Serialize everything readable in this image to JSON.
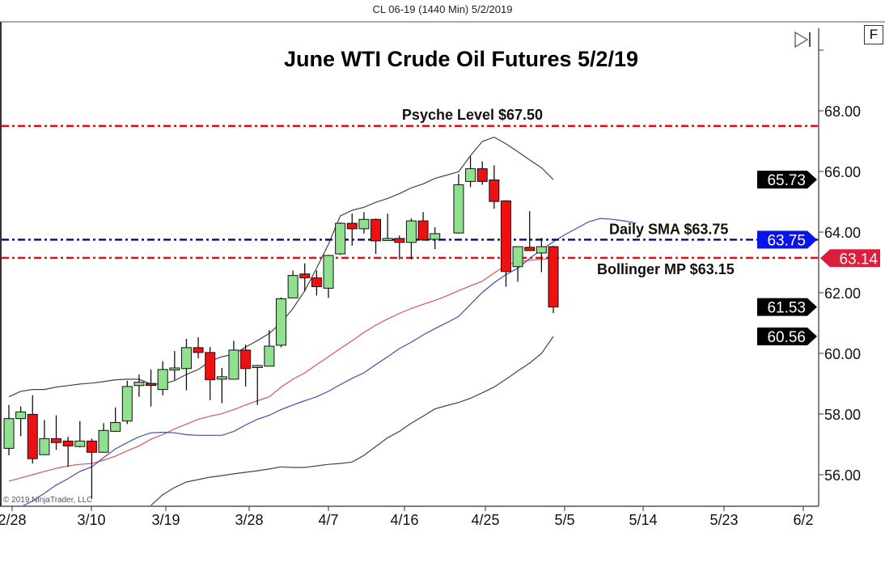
{
  "header": {
    "title": "CL 06-19 (1440 Min)  5/2/2019"
  },
  "controls": {
    "f_button": "F",
    "scroll_end_icon": "skip-to-end-icon"
  },
  "copyright": "© 2019 NinjaTrader, LLC",
  "colors": {
    "up": "#90e090",
    "down": "#ee1111",
    "upper_lower_band": "#444444",
    "middle_band": "#d05a5a",
    "sma": "#4a4ab0",
    "psyche_line": "#e01010",
    "sma_line": "#10108a",
    "bollinger_line": "#e01010",
    "tag_blue": "#0a14e6",
    "tag_red": "#dc1e3c",
    "tag_black": "#000000"
  },
  "chart_data": {
    "type": "candlestick",
    "title": "June WTI Crude Oil Futures 5/2/19",
    "ylim": [
      55.0,
      70.0
    ],
    "yticks": [
      "56.00",
      "58.00",
      "60.00",
      "62.00",
      "64.00",
      "66.00",
      "68.00"
    ],
    "xticks": [
      "2/28",
      "3/10",
      "3/19",
      "3/28",
      "4/7",
      "4/16",
      "4/25",
      "5/5",
      "5/14",
      "5/23",
      "6/2"
    ],
    "grid": false,
    "candles": [
      {
        "o": 56.87,
        "h": 58.3,
        "l": 56.64,
        "c": 57.85
      },
      {
        "o": 57.85,
        "h": 58.25,
        "l": 57.27,
        "c": 58.07
      },
      {
        "o": 57.99,
        "h": 58.62,
        "l": 56.37,
        "c": 56.53
      },
      {
        "o": 56.66,
        "h": 57.8,
        "l": 56.66,
        "c": 57.19
      },
      {
        "o": 57.19,
        "h": 57.96,
        "l": 56.82,
        "c": 57.06
      },
      {
        "o": 57.11,
        "h": 57.25,
        "l": 56.26,
        "c": 56.95
      },
      {
        "o": 56.93,
        "h": 57.77,
        "l": 56.9,
        "c": 57.11
      },
      {
        "o": 57.11,
        "h": 57.19,
        "l": 55.2,
        "c": 56.74
      },
      {
        "o": 56.74,
        "h": 57.7,
        "l": 56.74,
        "c": 57.46
      },
      {
        "o": 57.43,
        "h": 58.22,
        "l": 57.43,
        "c": 57.72
      },
      {
        "o": 57.77,
        "h": 59.1,
        "l": 57.67,
        "c": 58.91
      },
      {
        "o": 58.94,
        "h": 59.31,
        "l": 58.57,
        "c": 59.05
      },
      {
        "o": 59.01,
        "h": 59.47,
        "l": 58.25,
        "c": 58.99
      },
      {
        "o": 58.81,
        "h": 59.74,
        "l": 58.62,
        "c": 59.47
      },
      {
        "o": 59.47,
        "h": 60.08,
        "l": 59.13,
        "c": 59.52
      },
      {
        "o": 59.5,
        "h": 60.48,
        "l": 58.78,
        "c": 60.19
      },
      {
        "o": 60.19,
        "h": 60.53,
        "l": 59.84,
        "c": 60.03
      },
      {
        "o": 60.03,
        "h": 60.21,
        "l": 58.46,
        "c": 59.13
      },
      {
        "o": 59.15,
        "h": 59.52,
        "l": 58.36,
        "c": 59.23
      },
      {
        "o": 59.15,
        "h": 60.42,
        "l": 59.15,
        "c": 60.11
      },
      {
        "o": 60.11,
        "h": 60.29,
        "l": 58.91,
        "c": 59.5
      },
      {
        "o": 59.55,
        "h": 59.62,
        "l": 58.3,
        "c": 59.6
      },
      {
        "o": 59.58,
        "h": 60.77,
        "l": 59.58,
        "c": 60.24
      },
      {
        "o": 60.27,
        "h": 61.85,
        "l": 60.2,
        "c": 61.8
      },
      {
        "o": 61.83,
        "h": 62.73,
        "l": 61.83,
        "c": 62.57
      },
      {
        "o": 62.62,
        "h": 62.97,
        "l": 62.04,
        "c": 62.49
      },
      {
        "o": 62.49,
        "h": 62.73,
        "l": 61.91,
        "c": 62.2
      },
      {
        "o": 62.15,
        "h": 63.25,
        "l": 61.83,
        "c": 63.23
      },
      {
        "o": 63.28,
        "h": 64.32,
        "l": 63.25,
        "c": 64.29
      },
      {
        "o": 64.29,
        "h": 64.61,
        "l": 63.55,
        "c": 64.11
      },
      {
        "o": 64.11,
        "h": 64.66,
        "l": 63.95,
        "c": 64.42
      },
      {
        "o": 64.42,
        "h": 64.45,
        "l": 63.28,
        "c": 63.71
      },
      {
        "o": 63.74,
        "h": 64.61,
        "l": 63.74,
        "c": 63.79
      },
      {
        "o": 63.79,
        "h": 63.89,
        "l": 63.1,
        "c": 63.66
      },
      {
        "o": 63.66,
        "h": 64.45,
        "l": 63.1,
        "c": 64.37
      },
      {
        "o": 64.37,
        "h": 64.66,
        "l": 63.74,
        "c": 63.74
      },
      {
        "o": 63.76,
        "h": 64.16,
        "l": 63.44,
        "c": 63.95
      },
      null,
      {
        "o": 63.97,
        "h": 65.91,
        "l": 63.95,
        "c": 65.56
      },
      {
        "o": 65.67,
        "h": 66.49,
        "l": 65.48,
        "c": 66.09
      },
      {
        "o": 66.09,
        "h": 66.33,
        "l": 65.56,
        "c": 65.67
      },
      {
        "o": 65.72,
        "h": 66.2,
        "l": 64.77,
        "c": 65.01
      },
      {
        "o": 65.03,
        "h": 65.05,
        "l": 62.2,
        "c": 62.7
      },
      {
        "o": 62.86,
        "h": 63.52,
        "l": 62.36,
        "c": 63.52
      },
      {
        "o": 63.5,
        "h": 64.69,
        "l": 63.39,
        "c": 63.39
      },
      {
        "o": 63.31,
        "h": 63.81,
        "l": 62.68,
        "c": 63.52
      },
      {
        "o": 63.52,
        "h": 63.55,
        "l": 61.33,
        "c": 61.53
      }
    ],
    "upper_band": [
      58.57,
      58.75,
      58.81,
      58.81,
      58.89,
      58.94,
      58.99,
      59.02,
      59.07,
      59.13,
      59.15,
      59.15,
      58.99,
      58.99,
      59.1,
      59.31,
      59.47,
      59.74,
      59.89,
      59.97,
      60.21,
      60.42,
      60.66,
      61.01,
      61.48,
      62.07,
      62.81,
      63.6,
      64.53,
      64.72,
      64.82,
      64.98,
      65.11,
      65.27,
      65.46,
      65.59,
      65.77,
      65.88,
      65.99,
      66.52,
      66.99,
      67.13,
      66.91,
      66.65,
      66.38,
      66.12,
      65.73
    ],
    "middle_band": [
      55.79,
      55.89,
      56.0,
      56.11,
      56.21,
      56.29,
      56.34,
      56.37,
      56.48,
      56.61,
      56.79,
      56.95,
      57.17,
      57.32,
      57.51,
      57.67,
      57.83,
      57.93,
      58.01,
      58.15,
      58.3,
      58.44,
      58.57,
      58.89,
      59.15,
      59.36,
      59.63,
      59.89,
      60.16,
      60.42,
      60.69,
      60.93,
      61.14,
      61.32,
      61.48,
      61.62,
      61.75,
      61.9,
      62.07,
      62.23,
      62.38,
      62.65,
      62.91,
      63.02,
      63.07,
      63.1,
      63.14
    ],
    "lower_band": [
      null,
      null,
      null,
      null,
      null,
      null,
      null,
      null,
      null,
      null,
      null,
      null,
      54.99,
      55.34,
      55.58,
      55.76,
      55.84,
      55.92,
      55.97,
      56.03,
      56.08,
      56.13,
      56.19,
      56.26,
      56.24,
      56.24,
      56.29,
      56.34,
      56.37,
      56.42,
      56.64,
      56.93,
      57.22,
      57.43,
      57.7,
      57.93,
      58.17,
      58.28,
      58.38,
      58.52,
      58.7,
      58.89,
      59.15,
      59.42,
      59.68,
      60.0,
      60.56
    ],
    "sma": [
      54.73,
      54.94,
      55.13,
      55.39,
      55.66,
      55.87,
      56.11,
      56.26,
      56.56,
      56.85,
      57.06,
      57.25,
      57.38,
      57.4,
      57.38,
      57.32,
      57.3,
      57.3,
      57.3,
      57.43,
      57.64,
      57.83,
      57.96,
      58.15,
      58.3,
      58.44,
      58.57,
      58.75,
      58.97,
      59.18,
      59.36,
      59.63,
      59.89,
      60.16,
      60.37,
      60.61,
      60.82,
      61.01,
      61.22,
      61.62,
      62.01,
      62.33,
      62.6,
      62.81,
      63.13,
      63.42,
      63.68,
      63.92,
      64.13,
      64.34,
      64.45,
      64.42,
      64.37,
      64.29
    ],
    "hlines": [
      {
        "label": "Psyche Level $67.50",
        "value": 67.5,
        "color": "#e01010"
      },
      {
        "label": "Daily SMA $63.75",
        "value": 63.75,
        "color": "#10108a"
      },
      {
        "label": "Bollinger MP $63.15",
        "value": 63.15,
        "color": "#e01010"
      }
    ],
    "price_tags": [
      {
        "text": "65.73",
        "value": 65.73,
        "color": "#000000"
      },
      {
        "text": "63.75",
        "value": 63.75,
        "color": "#0a14e6"
      },
      {
        "text": "63.14",
        "value": 63.14,
        "color": "#dc1e3c"
      },
      {
        "text": "61.53",
        "value": 61.53,
        "color": "#000000"
      },
      {
        "text": "60.56",
        "value": 60.56,
        "color": "#000000"
      }
    ]
  }
}
